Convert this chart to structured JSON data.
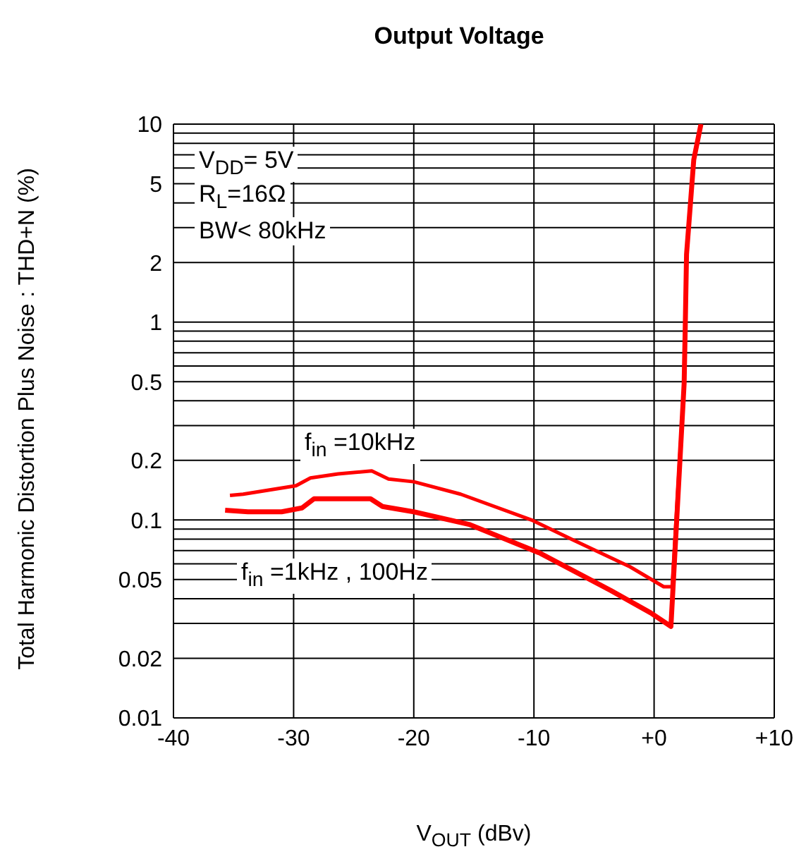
{
  "chart_data": {
    "type": "line",
    "title": "Output Voltage",
    "xlabel": "V$_{OUT}$ (dBv)",
    "ylabel": "Total Harmonic Distortion Plus Noise : THD+N (%)",
    "annotations": [
      "V$_{DD}$= 5V",
      "R$_{L}$=16Ω",
      "BW< 80kHz",
      "f$_{in}$ =10kHz",
      "f$_{in}$ =1kHz , 100Hz"
    ],
    "log": "y",
    "grid": true,
    "xlim": [
      -40,
      10
    ],
    "xticks": [
      -40,
      -30,
      -20,
      -10,
      {
        "value": 0,
        "label": "+0"
      },
      {
        "value": 10,
        "label": "+10"
      }
    ],
    "ylim": [
      0.01,
      10
    ],
    "yticks": [
      0.01,
      0.02,
      {
        "value": 0.03,
        "label": null
      },
      {
        "value": 0.04,
        "label": null
      },
      0.05,
      {
        "value": 0.06,
        "label": null
      },
      {
        "value": 0.07,
        "label": null
      },
      {
        "value": 0.08,
        "label": null
      },
      {
        "value": 0.09,
        "label": null
      },
      0.1,
      0.2,
      {
        "value": 0.3,
        "label": null
      },
      {
        "value": 0.4,
        "label": null
      },
      0.5,
      {
        "value": 0.6,
        "label": null
      },
      {
        "value": 0.7,
        "label": null
      },
      {
        "value": 0.8,
        "label": null
      },
      {
        "value": 0.9,
        "label": null
      },
      1,
      2,
      {
        "value": 3,
        "label": null
      },
      {
        "value": 4,
        "label": null
      },
      5,
      {
        "value": 6,
        "label": null
      },
      {
        "value": 7,
        "label": null
      },
      {
        "value": 8,
        "label": null
      },
      {
        "value": 9,
        "label": null
      },
      10
    ],
    "series": [
      {
        "color": "#ff0000",
        "x": [
          -35.3,
          -34.2,
          -29.8,
          -28.6,
          -26.3,
          -23.5,
          -22.1,
          -20,
          -16.1,
          -10.2,
          -6.7,
          -2,
          0.8,
          1.5,
          2.5,
          2.6,
          2.7,
          3,
          3.3,
          3.9
        ],
        "values": [
          0.133,
          0.135,
          0.149,
          0.163,
          0.171,
          0.177,
          0.161,
          0.156,
          0.135,
          0.1,
          0.079,
          0.058,
          0.046,
          0.046,
          0.49,
          1,
          2.2,
          3.8,
          6.6,
          10
        ]
      },
      {
        "color": "#ff0000",
        "x": [
          -35.7,
          -33.8,
          -31,
          -29.3,
          -28.3,
          -23.6,
          -22.6,
          -20,
          -15.4,
          -9.5,
          -3.6,
          -0.3,
          1.4,
          2.5,
          2.6,
          2.7,
          3,
          3.3,
          3.9
        ],
        "values": [
          0.112,
          0.11,
          0.11,
          0.115,
          0.128,
          0.128,
          0.117,
          0.11,
          0.095,
          0.068,
          0.044,
          0.034,
          0.029,
          0.49,
          1,
          2.2,
          3.8,
          6.6,
          10
        ]
      }
    ]
  }
}
